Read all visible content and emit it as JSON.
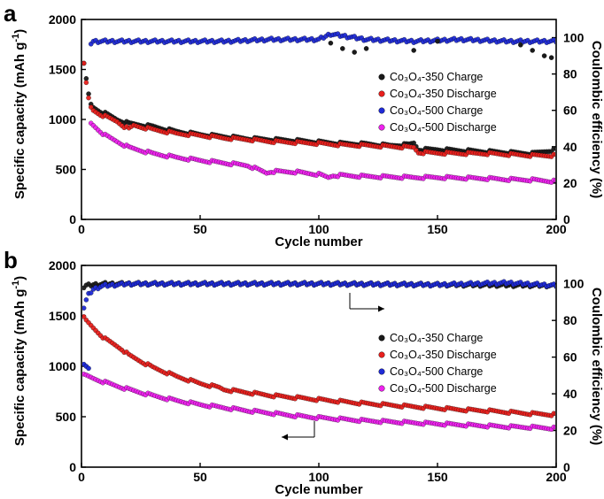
{
  "chart_data": [
    {
      "panel": "a",
      "type": "scatter",
      "xlabel": "Cycle number",
      "ylabel": "Specific capacity (mAh g-1)",
      "ylabel_sup": "-1",
      "y2label": "Coulombic efficiency (%)",
      "xlim": [
        0,
        200
      ],
      "ylim": [
        0,
        2000
      ],
      "y2lim": [
        0,
        110
      ],
      "xticks": [
        "0",
        "50",
        "100",
        "150",
        "200"
      ],
      "yticks": [
        "0",
        "500",
        "1000",
        "1500",
        "2000"
      ],
      "y2ticks": [
        "0",
        "20",
        "40",
        "60",
        "80",
        "100"
      ],
      "legend_position": "center-right",
      "series": [
        {
          "name": "Co3O4-350 Charge",
          "label": "Co₃O₄-350 Charge",
          "color": "#1a1a1a",
          "axis": "left",
          "x": [
            1,
            2,
            3,
            4,
            5,
            8,
            10,
            15,
            20,
            22,
            30,
            40,
            50,
            60,
            70,
            80,
            90,
            100,
            110,
            120,
            130,
            138,
            140,
            142,
            150,
            160,
            170,
            180,
            190,
            195,
            200
          ],
          "y": [
            1550,
            1400,
            1250,
            1150,
            1120,
            1080,
            1060,
            1000,
            960,
            955,
            930,
            880,
            850,
            830,
            810,
            800,
            790,
            775,
            760,
            755,
            740,
            750,
            765,
            700,
            700,
            690,
            680,
            670,
            660,
            680,
            700
          ]
        },
        {
          "name": "Co3O4-350 Discharge",
          "label": "Co₃O₄-350 Discharge",
          "color": "#e8201d",
          "axis": "left",
          "x": [
            1,
            2,
            3,
            4,
            5,
            8,
            10,
            15,
            18,
            20,
            22,
            30,
            40,
            50,
            60,
            70,
            80,
            90,
            100,
            110,
            120,
            130,
            140,
            142,
            150,
            160,
            170,
            180,
            190,
            200
          ],
          "y": [
            1550,
            1360,
            1210,
            1120,
            1090,
            1050,
            1030,
            980,
            930,
            905,
            940,
            900,
            860,
            840,
            815,
            800,
            780,
            770,
            760,
            745,
            740,
            730,
            720,
            670,
            665,
            660,
            660,
            650,
            640,
            640
          ]
        },
        {
          "name": "Co3O4-500 Charge",
          "label": "Co₃O₄-500 Charge",
          "color": "#1f2bd6",
          "axis": "right",
          "x": [
            4,
            5,
            10,
            20,
            40,
            60,
            80,
            100,
            105,
            120,
            140,
            160,
            180,
            200
          ],
          "y": [
            97,
            98,
            98,
            98,
            98,
            98,
            99,
            99,
            102,
            99,
            98,
            99,
            98,
            98
          ]
        },
        {
          "name": "Co3O4-500 Discharge",
          "label": "Co₃O₄-500 Discharge",
          "color": "#ee22ee",
          "axis": "left",
          "x": [
            4,
            5,
            8,
            10,
            15,
            20,
            30,
            40,
            50,
            60,
            70,
            78,
            80,
            90,
            100,
            104,
            106,
            110,
            120,
            130,
            140,
            150,
            160,
            170,
            180,
            190,
            200
          ],
          "y": [
            960,
            940,
            880,
            840,
            780,
            720,
            660,
            620,
            590,
            565,
            540,
            465,
            480,
            475,
            450,
            420,
            440,
            440,
            430,
            425,
            420,
            420,
            415,
            410,
            400,
            395,
            380
          ]
        }
      ],
      "scatter_points": {
        "x": [
          105,
          110,
          115,
          120,
          140,
          150,
          185,
          190,
          195,
          198
        ],
        "y": [
          97,
          94,
          92,
          94,
          93,
          98,
          96,
          93,
          90,
          89
        ]
      }
    },
    {
      "panel": "b",
      "type": "scatter",
      "xlabel": "Cycle number",
      "ylabel": "Specific capacity (mAh g-1)",
      "ylabel_sup": "-1",
      "y2label": "Coulombic efficiency (%)",
      "xlim": [
        0,
        200
      ],
      "ylim": [
        0,
        2000
      ],
      "y2lim": [
        0,
        110
      ],
      "xticks": [
        "0",
        "50",
        "100",
        "150",
        "200"
      ],
      "yticks": [
        "0",
        "500",
        "1000",
        "1500",
        "2000"
      ],
      "y2ticks": [
        "0",
        "20",
        "40",
        "60",
        "80",
        "100"
      ],
      "legend_position": "center-right",
      "series": [
        {
          "name": "Co3O4-350 Charge",
          "label": "Co₃O₄-350 Charge",
          "color": "#1a1a1a",
          "axis": "right",
          "x": [
            1,
            2,
            5,
            10,
            20,
            50,
            100,
            150,
            200
          ],
          "y": [
            98,
            99,
            99.5,
            100,
            100,
            100,
            100,
            99.5,
            99
          ]
        },
        {
          "name": "Co3O4-350 Discharge",
          "label": "Co₃O₄-350 Discharge",
          "color": "#e8201d",
          "axis": "left",
          "x": [
            1,
            2,
            5,
            10,
            15,
            17,
            20,
            30,
            40,
            50,
            58,
            60,
            70,
            80,
            90,
            100,
            110,
            120,
            130,
            140,
            150,
            160,
            170,
            180,
            190,
            200
          ],
          "y": [
            1480,
            1450,
            1380,
            1270,
            1200,
            1170,
            1110,
            990,
            900,
            830,
            790,
            770,
            740,
            710,
            690,
            670,
            650,
            630,
            615,
            600,
            585,
            570,
            560,
            545,
            530,
            520
          ]
        },
        {
          "name": "Co3O4-500 Charge",
          "label": "Co₃O₄-500 Charge",
          "color": "#1f2bd6",
          "axis": "right",
          "x": [
            1,
            2,
            3,
            5,
            8,
            10,
            15,
            20,
            40,
            60,
            100,
            150,
            180,
            200
          ],
          "y": [
            87,
            91,
            94,
            97,
            98.5,
            99,
            99.5,
            100,
            100,
            100,
            100,
            99.5,
            100.5,
            99
          ]
        },
        {
          "name": "Co3O4-500 Discharge",
          "label": "Co₃O₄-500 Discharge",
          "color": "#ee22ee",
          "axis": "left",
          "x": [
            1,
            2,
            5,
            10,
            20,
            30,
            40,
            50,
            60,
            70,
            80,
            90,
            100,
            110,
            120,
            130,
            140,
            150,
            160,
            170,
            180,
            190,
            200
          ],
          "y": [
            910,
            905,
            880,
            840,
            770,
            710,
            660,
            620,
            590,
            560,
            535,
            510,
            490,
            475,
            460,
            450,
            440,
            430,
            420,
            410,
            400,
            395,
            385
          ]
        }
      ],
      "blue_start": {
        "x": [
          1,
          2,
          3
        ],
        "y": [
          1020,
          1000,
          980
        ]
      }
    }
  ],
  "legend_order": [
    0,
    1,
    2,
    3
  ]
}
